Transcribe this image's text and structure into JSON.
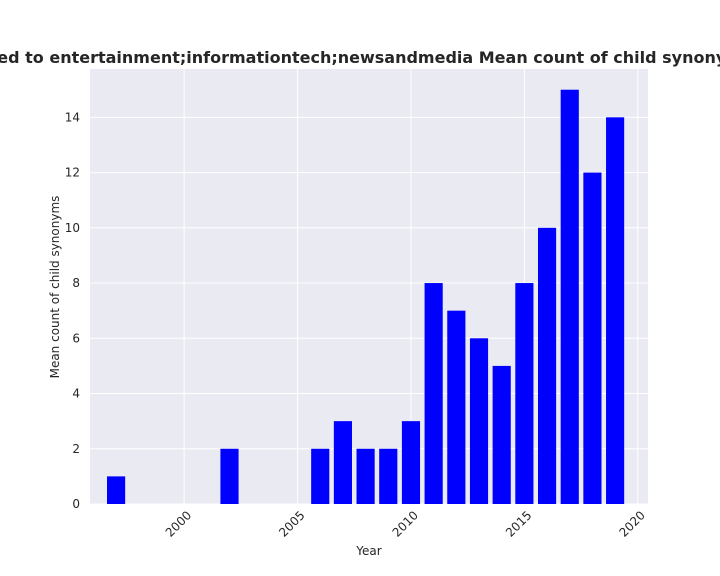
{
  "chart_data": {
    "type": "bar",
    "title": "e related to entertainment;informationtech;newsandmedia Mean count of child synonyms in pr",
    "xlabel": "Year",
    "ylabel": "Mean count of child synonyms",
    "x": [
      1997,
      2002,
      2006,
      2007,
      2008,
      2009,
      2010,
      2011,
      2012,
      2013,
      2014,
      2015,
      2016,
      2017,
      2018,
      2019
    ],
    "values": [
      1,
      2,
      2,
      3,
      2,
      2,
      3,
      8,
      7,
      6,
      5,
      8,
      10,
      15,
      12,
      14
    ],
    "xlim": [
      1995.85,
      2020.45
    ],
    "ylim": [
      0,
      15.75
    ],
    "xticks": [
      2000,
      2005,
      2010,
      2015,
      2020
    ],
    "yticks": [
      0,
      2,
      4,
      6,
      8,
      10,
      12,
      14
    ],
    "bar_color": "#0000ff",
    "background_color": "#eaeaf2",
    "grid": true
  }
}
